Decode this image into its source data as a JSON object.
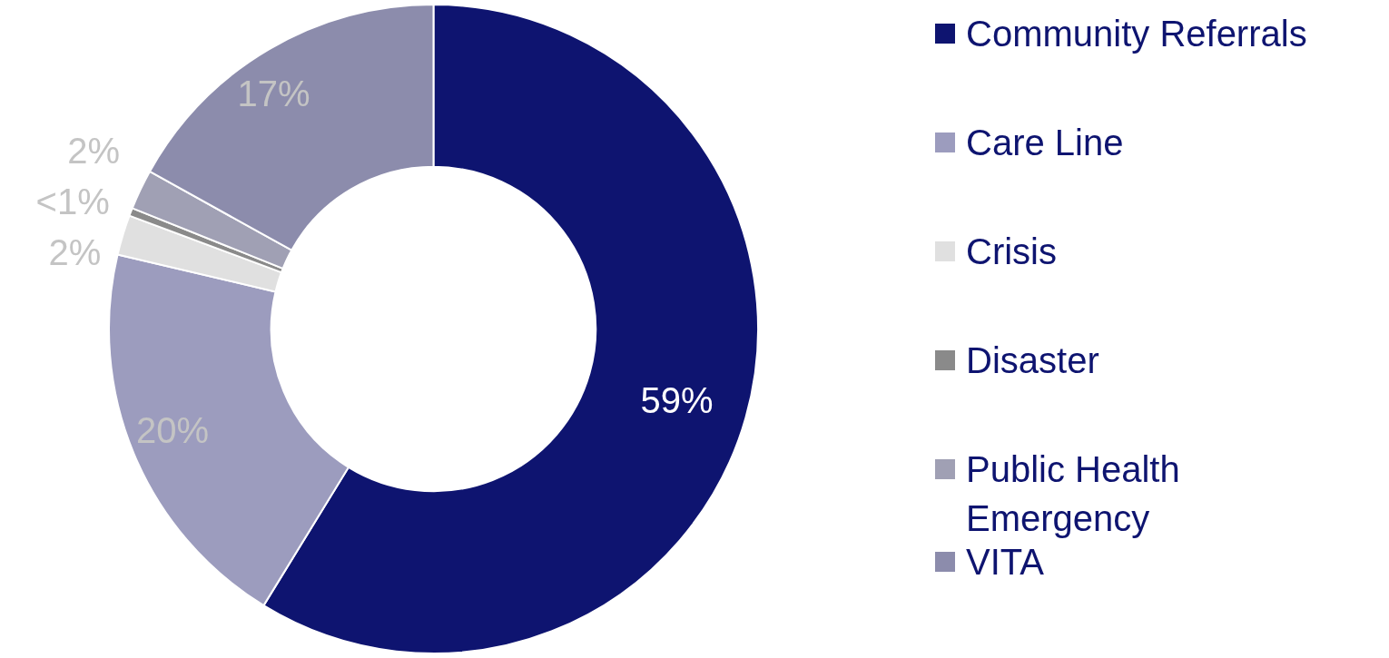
{
  "chart_data": {
    "type": "donut",
    "categories": [
      "Community Referrals",
      "Care Line",
      "Crisis",
      "Disaster",
      "Public Health Emergency",
      "VITA"
    ],
    "values": [
      59,
      20,
      2,
      0.4,
      2,
      17
    ],
    "colors": [
      "#0e1470",
      "#9c9cbe",
      "#e0e0e0",
      "#8a8a8a",
      "#a0a0b4",
      "#8c8cac"
    ],
    "value_labels": [
      "59%",
      "20%",
      "2%",
      "<1%",
      "2%",
      "17%"
    ],
    "legend": "right"
  }
}
